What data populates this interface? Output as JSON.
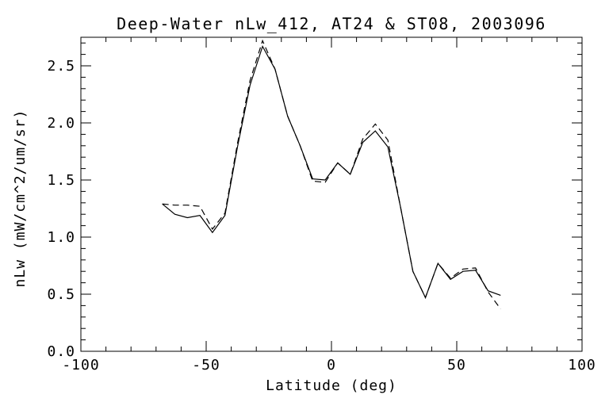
{
  "colors": {
    "background": "#ffffff",
    "line": "#000000",
    "text": "#000000"
  },
  "chart_data": {
    "type": "line",
    "title": "Deep-Water nLw_412, AT24 & ST08, 2003096",
    "xlabel": "Latitude (deg)",
    "ylabel": "nLw (mW/cm^2/um/sr)",
    "xlim": [
      -100,
      100
    ],
    "ylim": [
      0,
      2.75
    ],
    "grid": false,
    "legend": "none",
    "x_major_ticks": [
      -100,
      -50,
      0,
      50,
      100
    ],
    "x_tick_labels": [
      "-100",
      "-50",
      "0",
      "50",
      "100"
    ],
    "x_minor_step": 10,
    "y_major_ticks": [
      0.0,
      0.5,
      1.0,
      1.5,
      2.0,
      2.5
    ],
    "y_tick_labels": [
      "0.0",
      "0.5",
      "1.0",
      "1.5",
      "2.0",
      "2.5"
    ],
    "y_minor_step": 0.1,
    "x": [
      -67.5,
      -62.5,
      -57.5,
      -52.5,
      -47.5,
      -42.5,
      -37.5,
      -32.5,
      -27.5,
      -22.5,
      -17.5,
      -12.5,
      -7.5,
      -2.5,
      2.5,
      7.5,
      12.5,
      17.5,
      22.5,
      27.5,
      32.5,
      37.5,
      42.5,
      47.5,
      52.5,
      57.5,
      62.5,
      67.5
    ],
    "series": [
      {
        "name": "solid-line",
        "linestyle": "solid",
        "values": [
          1.29,
          1.2,
          1.17,
          1.19,
          1.04,
          1.19,
          1.79,
          2.33,
          2.67,
          2.47,
          2.06,
          1.8,
          1.51,
          1.5,
          1.65,
          1.55,
          1.83,
          1.93,
          1.79,
          1.27,
          0.7,
          0.47,
          0.77,
          0.63,
          0.7,
          0.71,
          0.53,
          0.49
        ]
      },
      {
        "name": "dashed-line",
        "linestyle": "dashed",
        "values": [
          1.29,
          1.28,
          1.28,
          1.27,
          1.07,
          1.21,
          1.82,
          2.37,
          2.72,
          2.47,
          2.06,
          1.8,
          1.49,
          1.48,
          1.65,
          1.55,
          1.86,
          1.99,
          1.85,
          1.27,
          0.7,
          0.47,
          0.77,
          0.64,
          0.72,
          0.73,
          0.52,
          0.37
        ]
      }
    ]
  }
}
